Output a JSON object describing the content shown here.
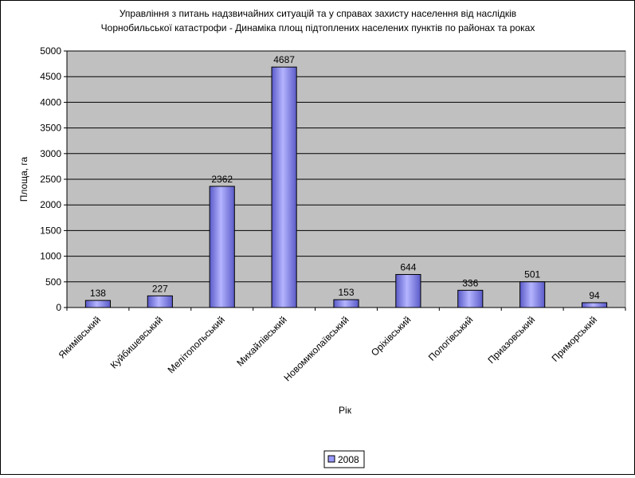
{
  "chart_data": {
    "type": "bar",
    "title": [
      "Управління з питань надзвичайних ситуацій та у справах захисту населення від наслідків",
      "Чорнобильської катастрофи - Динаміка площ підтоплених населених пунктів по районах та роках"
    ],
    "xlabel": "Рік",
    "ylabel": "Площа, га",
    "ylim": [
      0,
      5000
    ],
    "ytick_step": 500,
    "grid": true,
    "legend_position": "bottom",
    "categories": [
      "Якимівський",
      "Куйбишевський",
      "Мелітопольський",
      "Михайлівський",
      "Новомиколаївський",
      "Оріхівський",
      "Пологівський",
      "Приазовський",
      "Приморський"
    ],
    "series": [
      {
        "name": "2008",
        "values": [
          138,
          227,
          2362,
          4687,
          153,
          644,
          336,
          501,
          94
        ],
        "color": "#9999ff"
      }
    ],
    "plot_background": "#c0c0c0"
  }
}
